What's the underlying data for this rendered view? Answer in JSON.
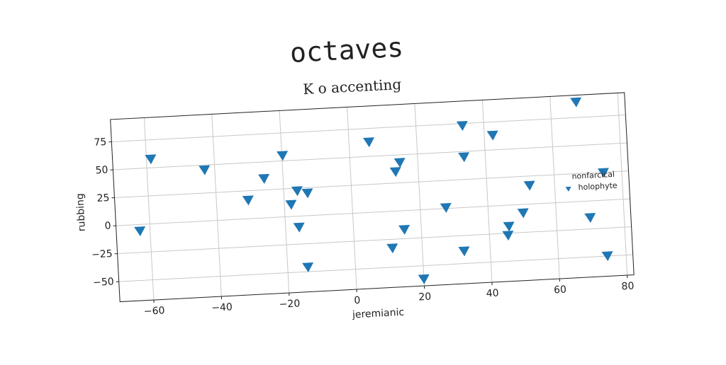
{
  "chart_data": {
    "type": "scatter",
    "title": "octaves",
    "subtitle": "K o accenting",
    "x_label": "jeremianic",
    "y_label": "rubbing",
    "legend_title": "nonfarcical",
    "legend_position": "center right",
    "grid": true,
    "marker": "v",
    "xlim": [
      -70,
      82
    ],
    "ylim": [
      -68,
      95
    ],
    "xticks": [
      {
        "value": -60,
        "label": "−60"
      },
      {
        "value": -40,
        "label": "−40"
      },
      {
        "value": -20,
        "label": "−20"
      },
      0,
      20,
      40,
      60,
      80
    ],
    "yticks": [
      {
        "value": -50,
        "label": "−50"
      },
      {
        "value": -25,
        "label": "−25"
      },
      0,
      25,
      50,
      75
    ],
    "series": [
      {
        "name": "holophyte",
        "color": "#1f77b4",
        "x": [
          -63,
          -58.7,
          -43,
          -30.6,
          -25.6,
          -19.8,
          -18,
          -16,
          -16,
          -13,
          -14,
          5.9,
          13.3,
          14.7,
          11.2,
          15,
          20,
          27.6,
          33.7,
          33.7,
          32.3,
          42.5,
          45.9,
          45.5,
          50.3,
          52.6,
          67.6,
          70,
          74.6,
          74.5
        ],
        "values": [
          -6,
          57.7,
          45.5,
          16.5,
          35,
          54.7,
          10.6,
          22.5,
          -10,
          20,
          -46,
          62.7,
          35,
          43,
          -33,
          -17,
          -62,
          0.6,
          73,
          45,
          -39,
          63,
          -19,
          -27,
          -7.7,
          16.5,
          88.7,
          -15,
          24.5,
          -50
        ]
      }
    ]
  }
}
